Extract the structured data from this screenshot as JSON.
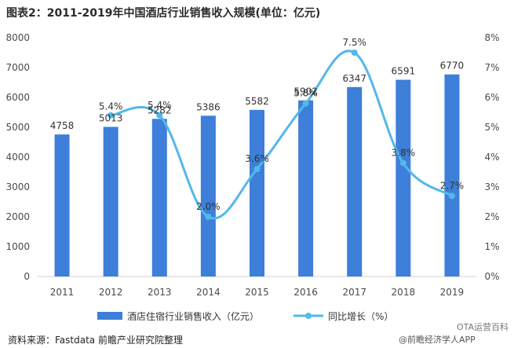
{
  "title": "图表2：2011-2019年中国酒店行业销售收入规模(单位：亿元)",
  "source": "资料来源：Fastdata 前瞻产业研究院整理",
  "watermark_wechat": "@前瞻经济学人APP",
  "watermark_ota": "OTA运营百科",
  "colors": {
    "bar": "#3d7fd9",
    "line": "#53b8ea",
    "grid": "#e6e6e6"
  },
  "chart_data": {
    "type": "bar",
    "categories": [
      "2011",
      "2012",
      "2013",
      "2014",
      "2015",
      "2016",
      "2017",
      "2018",
      "2019"
    ],
    "series": [
      {
        "name": "酒店住宿行业销售收入（亿元）",
        "type": "bar",
        "axis": "left",
        "values": [
          4758,
          5013,
          5282,
          5386,
          5582,
          5902,
          6347,
          6591,
          6770
        ]
      },
      {
        "name": "同比增长（%）",
        "type": "line",
        "axis": "right",
        "values": [
          null,
          5.4,
          5.4,
          2.0,
          3.6,
          5.8,
          7.5,
          3.8,
          2.7
        ]
      }
    ],
    "value_labels": [
      "4758",
      "5013",
      "5282",
      "5386",
      "5582",
      "5902",
      "6347",
      "6591",
      "6770"
    ],
    "pct_labels": [
      "",
      "5.4%",
      "5.4%",
      "2.0%",
      "3.6%",
      "5.8%",
      "7.5%",
      "3.8%",
      "2.7%"
    ],
    "y_left": {
      "min": 0,
      "max": 8000,
      "ticks": [
        "0",
        "1000",
        "2000",
        "3000",
        "4000",
        "5000",
        "6000",
        "7000",
        "8000"
      ]
    },
    "y_right": {
      "min": 0,
      "max": 8,
      "ticks": [
        "0%",
        "1%",
        "2%",
        "3%",
        "4%",
        "5%",
        "6%",
        "7%",
        "8%"
      ]
    },
    "legend_position": "bottom",
    "grid": false
  }
}
